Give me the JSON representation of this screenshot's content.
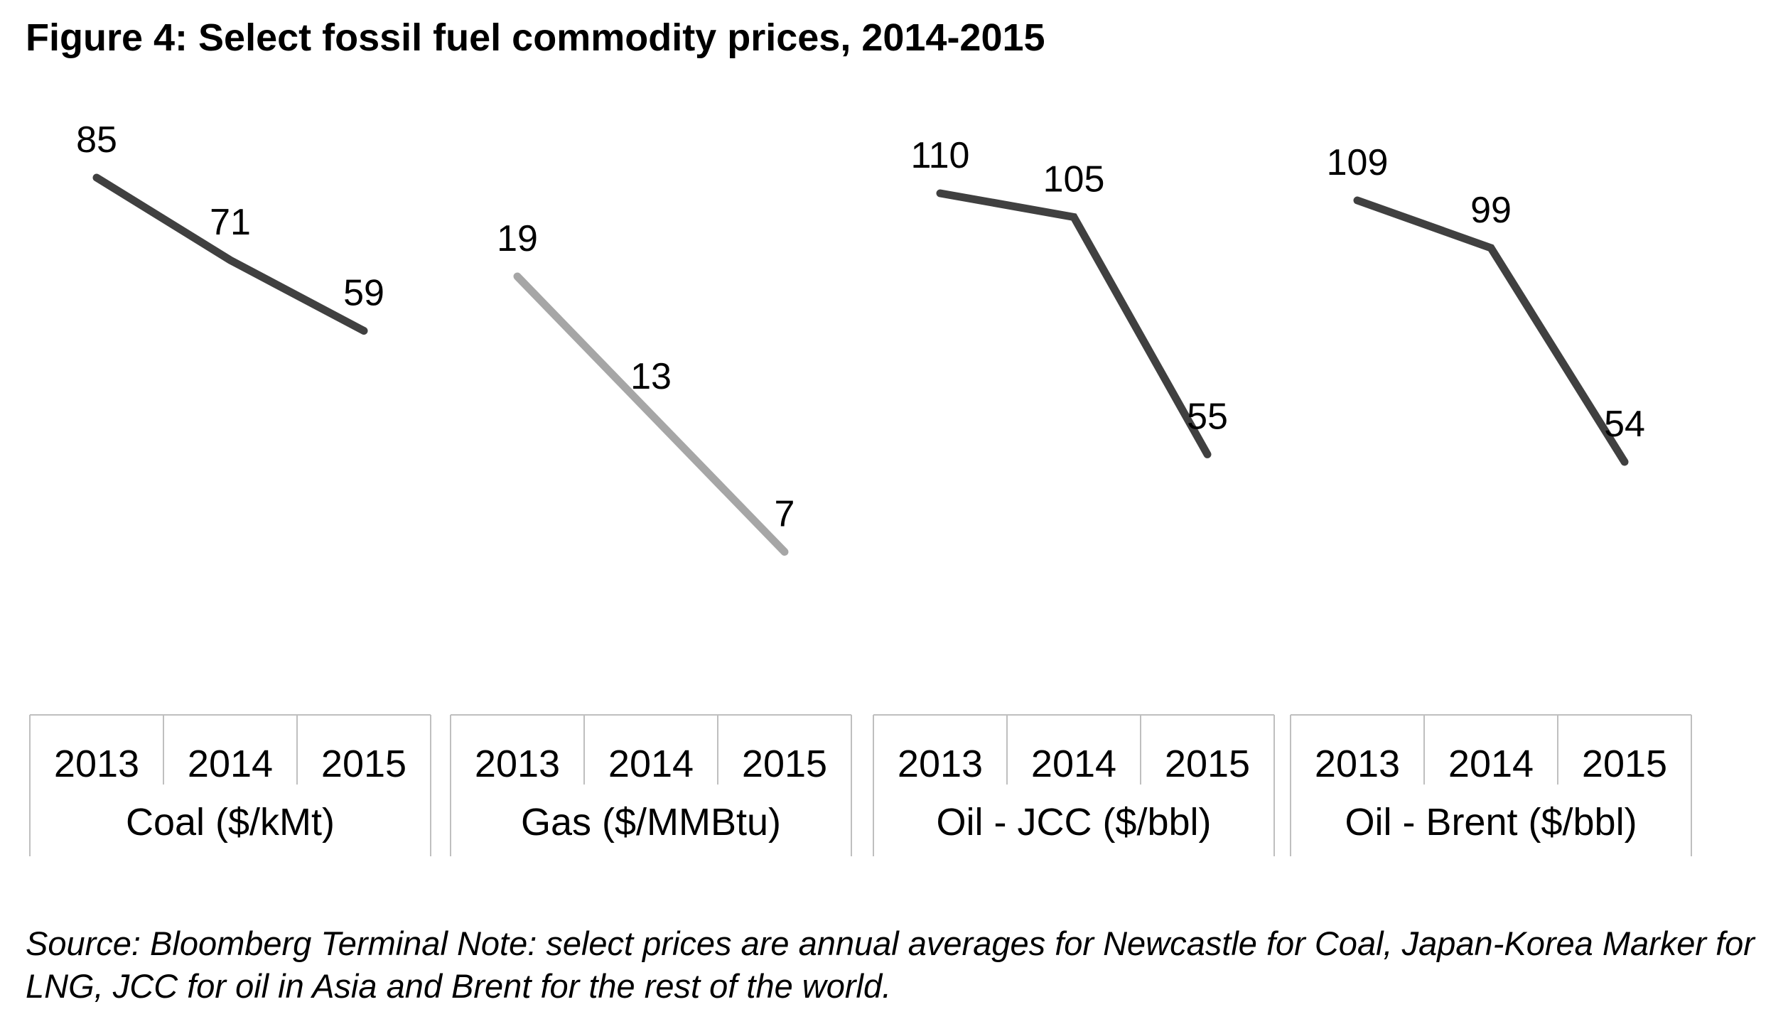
{
  "title": "Figure 4: Select fossil fuel commodity prices, 2014-2015",
  "source_note": "Source: Bloomberg Terminal Note: select prices are annual averages for Newcastle for Coal, Japan-Korea Marker for LNG, JCC for oil in Asia and Brent for the rest of the world.",
  "chart_data": {
    "type": "line",
    "title": "Figure 4: Select fossil fuel commodity prices, 2014-2015",
    "categories": [
      "2013",
      "2014",
      "2015"
    ],
    "series": [
      {
        "name": "Coal ($/kMt)",
        "values": [
          85,
          71,
          59
        ],
        "color": "#404040"
      },
      {
        "name": "Gas ($/MMBtu)",
        "values": [
          19,
          13,
          7
        ],
        "color": "#a6a6a6"
      },
      {
        "name": "Oil - JCC ($/bbl)",
        "values": [
          110,
          105,
          55
        ],
        "color": "#404040"
      },
      {
        "name": "Oil - Brent ($/bbl)",
        "values": [
          109,
          99,
          54
        ],
        "color": "#404040"
      }
    ],
    "xlabel": "",
    "ylabel": "",
    "grid": false,
    "legend": "none"
  }
}
